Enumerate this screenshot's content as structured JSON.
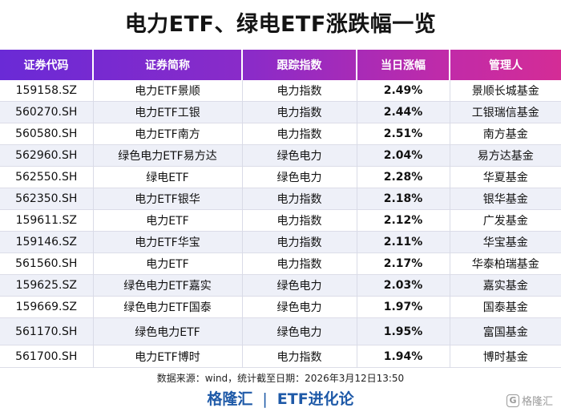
{
  "title": "电力ETF、绿电ETF涨跌幅一览",
  "headers": [
    "证券代码",
    "证券简称",
    "跟踪指数",
    "当日涨幅",
    "管理人"
  ],
  "rows": [
    [
      "159158.SZ",
      "电力ETF景顺",
      "电力指数",
      "2.49%",
      "景顺长城基金"
    ],
    [
      "560270.SH",
      "电力ETF工银",
      "电力指数",
      "2.44%",
      "工银瑞信基金"
    ],
    [
      "560580.SH",
      "电力ETF南方",
      "电力指数",
      "2.51%",
      "南方基金"
    ],
    [
      "562960.SH",
      "绿色电力ETF易方达",
      "绿色电力",
      "2.04%",
      "易方达基金"
    ],
    [
      "562550.SH",
      "绿电ETF",
      "绿色电力",
      "2.28%",
      "华夏基金"
    ],
    [
      "562350.SH",
      "电力ETF银华",
      "电力指数",
      "2.18%",
      "银华基金"
    ],
    [
      "159611.SZ",
      "电力ETF",
      "电力指数",
      "2.12%",
      "广发基金"
    ],
    [
      "159146.SZ",
      "电力ETF华宝",
      "电力指数",
      "2.11%",
      "华宝基金"
    ],
    [
      "561560.SH",
      "电力ETF",
      "电力指数",
      "2.17%",
      "华泰柏瑞基金"
    ],
    [
      "159625.SZ",
      "绿色电力ETF嘉实",
      "绿色电力",
      "2.03%",
      "嘉实基金"
    ],
    [
      "159669.SZ",
      "绿色电力ETF国泰",
      "绿色电力",
      "1.97%",
      "国泰基金"
    ],
    [
      "561170.SH",
      "绿色电力ETF",
      "绿色电力",
      "1.95%",
      "富国基金"
    ],
    [
      "561700.SH",
      "电力ETF博时",
      "电力指数",
      "1.94%",
      "博时基金"
    ]
  ],
  "source": "数据来源：wind，统计截至日期：2026年3月12日13:50",
  "brand": {
    "left": "格隆汇",
    "separator": "|",
    "right": "ETF进化论"
  },
  "watermark": {
    "logo": "G",
    "text": "格隆汇"
  },
  "colors": {
    "header_gradient_start": "#6a2ad6",
    "header_gradient_end": "#d42c96",
    "change_positive": "#e0101e",
    "brand": "#1f5aa8",
    "alt_row": "#eef0f8"
  }
}
